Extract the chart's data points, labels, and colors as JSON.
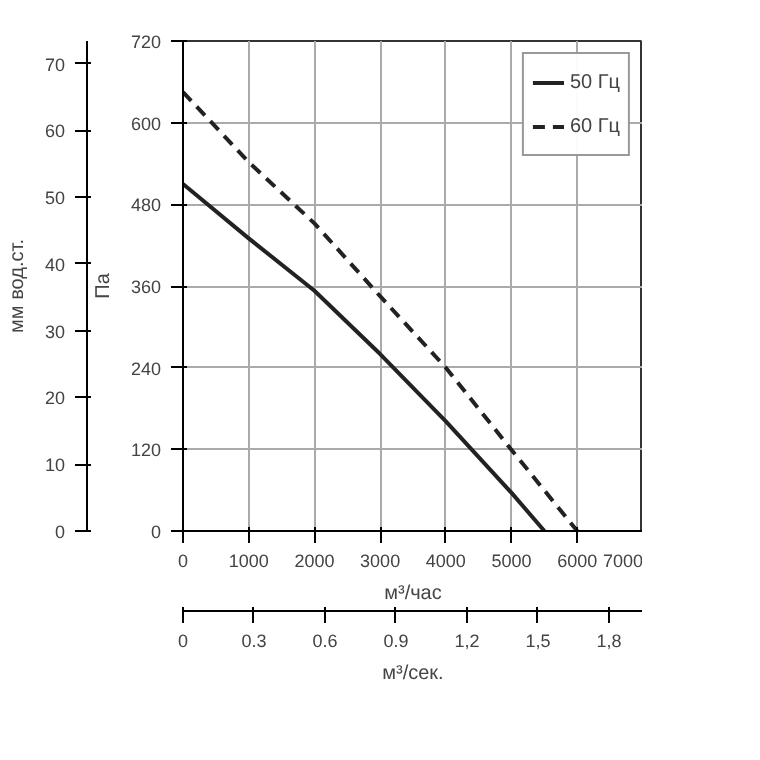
{
  "chart_data": {
    "type": "line",
    "xlabel": "м³/час",
    "ylabel": "Па",
    "y2label": "мм вод.ст.",
    "x2label": "м³/сек.",
    "xlim": [
      0,
      7000
    ],
    "xticks": [
      0,
      1000,
      2000,
      3000,
      4000,
      5000,
      6000,
      7000
    ],
    "ylim": [
      0,
      720
    ],
    "yticks": [
      0,
      120,
      240,
      360,
      480,
      600,
      720
    ],
    "y2lim": [
      0,
      73.4
    ],
    "y2ticks": [
      0,
      10,
      20,
      30,
      40,
      50,
      60,
      70
    ],
    "x2lim": [
      0,
      1.944
    ],
    "x2ticks": [
      0,
      0.3,
      0.6,
      0.9,
      {
        "value": 1.2,
        "label": "1,2"
      },
      {
        "value": 1.5,
        "label": "1,5"
      },
      {
        "value": 1.8,
        "label": "1,8"
      }
    ],
    "grid": true,
    "legend": "top right",
    "marker": "none",
    "series": [
      {
        "name": "50 Гц",
        "color": "#222222",
        "line_style": "solid",
        "x": [
          0,
          1000,
          2000,
          3000,
          4000,
          5000,
          5500
        ],
        "values": [
          510,
          430,
          353,
          260,
          161,
          56,
          0
        ]
      },
      {
        "name": "60 Гц",
        "color": "#222222",
        "line_style": "dashed",
        "x": [
          0,
          1000,
          2000,
          3000,
          4000,
          5000,
          6000
        ],
        "values": [
          645,
          542,
          452,
          345,
          240,
          119,
          0
        ]
      }
    ]
  }
}
